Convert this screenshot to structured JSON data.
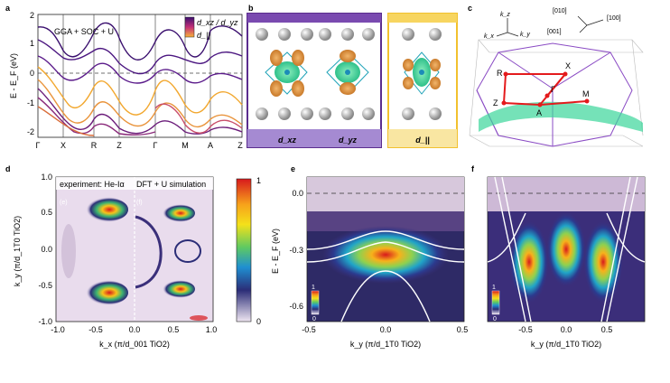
{
  "panel_labels": {
    "a": "a",
    "b": "b",
    "c": "c",
    "d": "d",
    "e": "e",
    "f": "f"
  },
  "panel_a": {
    "method": "GGA + SOC + U",
    "legend_top": "d_xz / d_yz",
    "legend_bottom": "d_||",
    "ylabel": "E - E_F (eV)",
    "yticks": [
      "2",
      "1",
      "0",
      "-1",
      "-2"
    ],
    "kpoints": [
      "Γ",
      "X",
      "R",
      "Z",
      "Γ",
      "M",
      "A",
      "Z"
    ]
  },
  "panel_b": {
    "label_xz": "d_xz",
    "label_yz": "d_yz",
    "label_par": "d_||"
  },
  "panel_c": {
    "axes": {
      "kz": "k_z",
      "kx": "k_x",
      "ky": "k_y"
    },
    "directions": {
      "d010": "[010]",
      "d100": "[100]",
      "d001": "[001]"
    },
    "points": {
      "R": "R",
      "X": "X",
      "Gamma": "Γ",
      "Z": "Z",
      "M": "M",
      "A": "A"
    }
  },
  "panel_d": {
    "experiment": "experiment: He-Iα",
    "simulation": "DFT + U simulation",
    "tag_e": "(e)",
    "tag_f": "(f)",
    "yticks": [
      "1.0",
      "0.5",
      "0.0",
      "-0.5",
      "-1.0"
    ],
    "xticks": [
      "-1.0",
      "-0.5",
      "0.0",
      "0.5",
      "1.0"
    ],
    "ylabel": "k_y (π/d_1T0 TiO2)",
    "xlabel": "k_x (π/d_001 TiO2)",
    "colorbar": {
      "max": "1",
      "min": "0"
    }
  },
  "panel_e": {
    "ylabel": "E - E_F (eV)",
    "yticks": [
      "0.0",
      "-0.3",
      "-0.6"
    ],
    "xticks": [
      "-0.5",
      "0.0",
      "0.5"
    ],
    "xlabel": "k_y (π/d_1T0 TiO2)",
    "cb": {
      "max": "1",
      "min": "0"
    }
  },
  "panel_f": {
    "xticks": [
      "-0.5",
      "0.0",
      "0.5"
    ],
    "xlabel": "k_y (π/d_1T0 TiO2)",
    "cb": {
      "max": "1",
      "min": "0"
    }
  }
}
